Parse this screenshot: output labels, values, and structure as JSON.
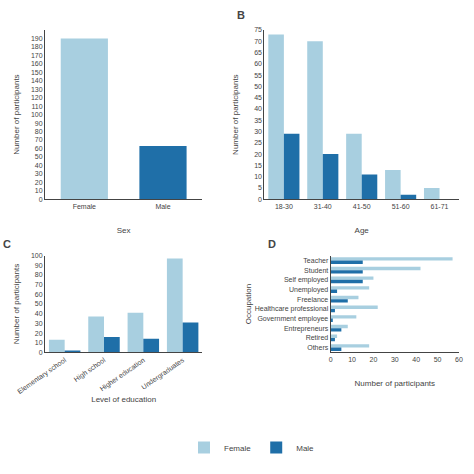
{
  "chart_data": [
    {
      "type": "bar",
      "categories": [
        "Female",
        "Male"
      ],
      "values": [
        190,
        63
      ],
      "colors": [
        "#a8cfe0",
        "#1f6fa8"
      ],
      "xlabel": "Sex",
      "ylabel": "Number of participants",
      "ylim": [
        0,
        200
      ],
      "yticks": [
        0,
        10,
        20,
        30,
        40,
        50,
        60,
        70,
        80,
        90,
        100,
        110,
        120,
        130,
        140,
        150,
        160,
        170,
        180,
        190
      ],
      "grid": false
    },
    {
      "type": "bar",
      "title": "B",
      "categories": [
        "18-30",
        "31-40",
        "41-50",
        "51-60",
        "61-71"
      ],
      "series": [
        {
          "name": "Female",
          "color": "#a8cfe0",
          "values": [
            73,
            70,
            29,
            13,
            5
          ]
        },
        {
          "name": "Male",
          "color": "#1f6fa8",
          "values": [
            29,
            20,
            11,
            2,
            0
          ]
        }
      ],
      "xlabel": "Age",
      "ylabel": "Number of participants",
      "ylim": [
        0,
        75
      ],
      "yticks": [
        0,
        5,
        10,
        15,
        20,
        25,
        30,
        35,
        40,
        45,
        50,
        55,
        60,
        65,
        70,
        75
      ],
      "grid": false,
      "legend": "bottom"
    },
    {
      "type": "bar",
      "title": "C",
      "categories": [
        "Elementary school",
        "High school",
        "Higher education",
        "Undergraduates"
      ],
      "series": [
        {
          "name": "Female",
          "color": "#a8cfe0",
          "values": [
            13,
            37,
            41,
            97
          ]
        },
        {
          "name": "Male",
          "color": "#1f6fa8",
          "values": [
            2,
            16,
            14,
            31
          ]
        }
      ],
      "xlabel": "Level of education",
      "ylabel": "Number of participants",
      "ylim": [
        0,
        100
      ],
      "yticks": [
        0,
        10,
        20,
        30,
        40,
        50,
        60,
        70,
        80,
        90,
        100
      ],
      "grid": false
    },
    {
      "type": "bar",
      "title": "D",
      "orientation": "horizontal",
      "categories": [
        "Others",
        "Retired",
        "Entrepreneurs",
        "Government employee",
        "Healthcare professional",
        "Freelance",
        "Unemployed",
        "Self employed",
        "Student",
        "Teacher"
      ],
      "series": [
        {
          "name": "Female",
          "color": "#a8cfe0",
          "values": [
            18,
            3,
            8,
            12,
            22,
            13,
            18,
            20,
            42,
            57
          ]
        },
        {
          "name": "Male",
          "color": "#1f6fa8",
          "values": [
            5,
            2,
            5,
            1,
            2,
            8,
            3,
            15,
            15,
            15
          ]
        }
      ],
      "xlabel": "Number of participants",
      "ylabel": "Occupation",
      "xlim": [
        0,
        60
      ],
      "xticks": [
        0,
        10,
        20,
        30,
        40,
        50,
        60
      ],
      "grid": false
    }
  ]
}
